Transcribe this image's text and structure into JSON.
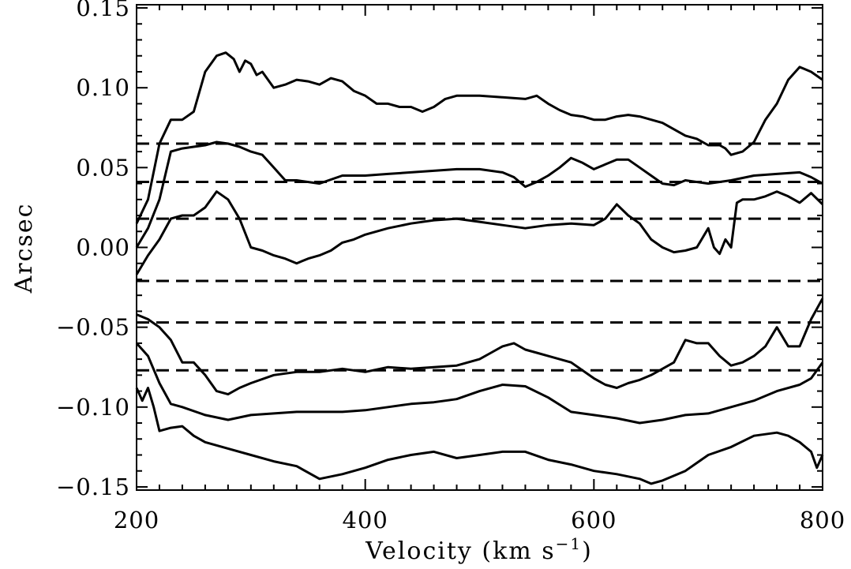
{
  "chart_data": {
    "type": "line",
    "title": "",
    "xlabel": "Velocity (km s",
    "xlabel_exponent": "−1",
    "xlabel_close": ")",
    "ylabel": "Arcsec",
    "xlim": [
      200,
      800
    ],
    "ylim": [
      -0.152,
      0.152
    ],
    "x_ticks": [
      200,
      400,
      600,
      800
    ],
    "x_tick_labels": [
      "200",
      "400",
      "600",
      "800"
    ],
    "y_ticks": [
      -0.15,
      -0.1,
      -0.05,
      0.0,
      0.05,
      0.1,
      0.15
    ],
    "y_tick_labels": [
      "−0.15",
      "−0.10",
      "−0.05",
      "0.00",
      "0.05",
      "0.10",
      "0.15"
    ],
    "grid": false,
    "legend": "none",
    "line_color": "#000000",
    "reference_lines": [
      0.065,
      0.041,
      0.018,
      -0.021,
      -0.047,
      -0.077
    ],
    "series": [
      {
        "points": [
          [
            200,
            0.015
          ],
          [
            210,
            0.03
          ],
          [
            220,
            0.065
          ],
          [
            230,
            0.08
          ],
          [
            240,
            0.08
          ],
          [
            250,
            0.085
          ],
          [
            260,
            0.11
          ],
          [
            270,
            0.12
          ],
          [
            278,
            0.122
          ],
          [
            285,
            0.118
          ],
          [
            290,
            0.11
          ],
          [
            295,
            0.117
          ],
          [
            300,
            0.115
          ],
          [
            305,
            0.108
          ],
          [
            310,
            0.11
          ],
          [
            320,
            0.1
          ],
          [
            330,
            0.102
          ],
          [
            340,
            0.105
          ],
          [
            350,
            0.104
          ],
          [
            360,
            0.102
          ],
          [
            370,
            0.106
          ],
          [
            380,
            0.104
          ],
          [
            390,
            0.098
          ],
          [
            400,
            0.095
          ],
          [
            410,
            0.09
          ],
          [
            420,
            0.09
          ],
          [
            430,
            0.088
          ],
          [
            440,
            0.088
          ],
          [
            450,
            0.085
          ],
          [
            460,
            0.088
          ],
          [
            470,
            0.093
          ],
          [
            480,
            0.095
          ],
          [
            500,
            0.095
          ],
          [
            520,
            0.094
          ],
          [
            540,
            0.093
          ],
          [
            550,
            0.095
          ],
          [
            560,
            0.09
          ],
          [
            570,
            0.086
          ],
          [
            580,
            0.083
          ],
          [
            590,
            0.082
          ],
          [
            600,
            0.08
          ],
          [
            610,
            0.08
          ],
          [
            620,
            0.082
          ],
          [
            630,
            0.083
          ],
          [
            640,
            0.082
          ],
          [
            660,
            0.078
          ],
          [
            670,
            0.074
          ],
          [
            680,
            0.07
          ],
          [
            690,
            0.068
          ],
          [
            700,
            0.064
          ],
          [
            710,
            0.064
          ],
          [
            715,
            0.062
          ],
          [
            720,
            0.058
          ],
          [
            730,
            0.06
          ],
          [
            740,
            0.066
          ],
          [
            750,
            0.08
          ],
          [
            760,
            0.09
          ],
          [
            770,
            0.105
          ],
          [
            780,
            0.113
          ],
          [
            790,
            0.11
          ],
          [
            800,
            0.105
          ]
        ]
      },
      {
        "points": [
          [
            200,
            0.0
          ],
          [
            210,
            0.012
          ],
          [
            220,
            0.03
          ],
          [
            230,
            0.06
          ],
          [
            240,
            0.062
          ],
          [
            250,
            0.063
          ],
          [
            260,
            0.064
          ],
          [
            270,
            0.066
          ],
          [
            280,
            0.065
          ],
          [
            290,
            0.063
          ],
          [
            300,
            0.06
          ],
          [
            310,
            0.058
          ],
          [
            320,
            0.05
          ],
          [
            330,
            0.042
          ],
          [
            340,
            0.042
          ],
          [
            360,
            0.04
          ],
          [
            380,
            0.045
          ],
          [
            400,
            0.045
          ],
          [
            420,
            0.046
          ],
          [
            440,
            0.047
          ],
          [
            460,
            0.048
          ],
          [
            480,
            0.049
          ],
          [
            500,
            0.049
          ],
          [
            520,
            0.047
          ],
          [
            530,
            0.044
          ],
          [
            540,
            0.038
          ],
          [
            550,
            0.041
          ],
          [
            560,
            0.045
          ],
          [
            570,
            0.05
          ],
          [
            580,
            0.056
          ],
          [
            590,
            0.053
          ],
          [
            600,
            0.049
          ],
          [
            610,
            0.052
          ],
          [
            620,
            0.055
          ],
          [
            630,
            0.055
          ],
          [
            640,
            0.05
          ],
          [
            650,
            0.045
          ],
          [
            660,
            0.04
          ],
          [
            670,
            0.039
          ],
          [
            680,
            0.042
          ],
          [
            700,
            0.04
          ],
          [
            720,
            0.042
          ],
          [
            740,
            0.045
          ],
          [
            760,
            0.046
          ],
          [
            780,
            0.047
          ],
          [
            790,
            0.044
          ],
          [
            800,
            0.04
          ]
        ]
      },
      {
        "points": [
          [
            200,
            -0.017
          ],
          [
            210,
            -0.005
          ],
          [
            220,
            0.005
          ],
          [
            230,
            0.018
          ],
          [
            240,
            0.02
          ],
          [
            250,
            0.02
          ],
          [
            260,
            0.025
          ],
          [
            270,
            0.035
          ],
          [
            280,
            0.03
          ],
          [
            290,
            0.018
          ],
          [
            300,
            0.0
          ],
          [
            310,
            -0.002
          ],
          [
            320,
            -0.005
          ],
          [
            330,
            -0.007
          ],
          [
            340,
            -0.01
          ],
          [
            350,
            -0.007
          ],
          [
            360,
            -0.005
          ],
          [
            370,
            -0.002
          ],
          [
            380,
            0.003
          ],
          [
            390,
            0.005
          ],
          [
            400,
            0.008
          ],
          [
            420,
            0.012
          ],
          [
            440,
            0.015
          ],
          [
            460,
            0.017
          ],
          [
            480,
            0.018
          ],
          [
            500,
            0.016
          ],
          [
            520,
            0.014
          ],
          [
            540,
            0.012
          ],
          [
            560,
            0.014
          ],
          [
            580,
            0.015
          ],
          [
            600,
            0.014
          ],
          [
            610,
            0.018
          ],
          [
            620,
            0.027
          ],
          [
            630,
            0.02
          ],
          [
            640,
            0.015
          ],
          [
            650,
            0.005
          ],
          [
            660,
            0.0
          ],
          [
            670,
            -0.003
          ],
          [
            680,
            -0.002
          ],
          [
            690,
            0.0
          ],
          [
            700,
            0.012
          ],
          [
            705,
            0.0
          ],
          [
            710,
            -0.004
          ],
          [
            715,
            0.005
          ],
          [
            720,
            0.0
          ],
          [
            725,
            0.028
          ],
          [
            730,
            0.03
          ],
          [
            740,
            0.03
          ],
          [
            750,
            0.032
          ],
          [
            760,
            0.035
          ],
          [
            770,
            0.032
          ],
          [
            780,
            0.028
          ],
          [
            790,
            0.034
          ],
          [
            800,
            0.027
          ]
        ]
      },
      {
        "points": [
          [
            200,
            -0.042
          ],
          [
            210,
            -0.045
          ],
          [
            220,
            -0.05
          ],
          [
            230,
            -0.058
          ],
          [
            240,
            -0.072
          ],
          [
            250,
            -0.072
          ],
          [
            260,
            -0.08
          ],
          [
            270,
            -0.09
          ],
          [
            280,
            -0.092
          ],
          [
            290,
            -0.088
          ],
          [
            300,
            -0.085
          ],
          [
            320,
            -0.08
          ],
          [
            340,
            -0.078
          ],
          [
            360,
            -0.078
          ],
          [
            380,
            -0.076
          ],
          [
            400,
            -0.078
          ],
          [
            420,
            -0.075
          ],
          [
            440,
            -0.076
          ],
          [
            460,
            -0.075
          ],
          [
            480,
            -0.074
          ],
          [
            500,
            -0.07
          ],
          [
            510,
            -0.066
          ],
          [
            520,
            -0.062
          ],
          [
            530,
            -0.06
          ],
          [
            540,
            -0.064
          ],
          [
            550,
            -0.066
          ],
          [
            560,
            -0.068
          ],
          [
            580,
            -0.072
          ],
          [
            600,
            -0.082
          ],
          [
            610,
            -0.086
          ],
          [
            620,
            -0.088
          ],
          [
            630,
            -0.085
          ],
          [
            640,
            -0.083
          ],
          [
            650,
            -0.08
          ],
          [
            660,
            -0.076
          ],
          [
            670,
            -0.072
          ],
          [
            680,
            -0.058
          ],
          [
            690,
            -0.06
          ],
          [
            700,
            -0.06
          ],
          [
            710,
            -0.068
          ],
          [
            720,
            -0.074
          ],
          [
            730,
            -0.072
          ],
          [
            740,
            -0.068
          ],
          [
            750,
            -0.062
          ],
          [
            760,
            -0.05
          ],
          [
            770,
            -0.062
          ],
          [
            780,
            -0.062
          ],
          [
            790,
            -0.045
          ],
          [
            800,
            -0.032
          ]
        ]
      },
      {
        "points": [
          [
            200,
            -0.06
          ],
          [
            210,
            -0.068
          ],
          [
            220,
            -0.085
          ],
          [
            230,
            -0.098
          ],
          [
            240,
            -0.1
          ],
          [
            260,
            -0.105
          ],
          [
            280,
            -0.108
          ],
          [
            300,
            -0.105
          ],
          [
            320,
            -0.104
          ],
          [
            340,
            -0.103
          ],
          [
            360,
            -0.103
          ],
          [
            380,
            -0.103
          ],
          [
            400,
            -0.102
          ],
          [
            420,
            -0.1
          ],
          [
            440,
            -0.098
          ],
          [
            460,
            -0.097
          ],
          [
            480,
            -0.095
          ],
          [
            500,
            -0.09
          ],
          [
            520,
            -0.086
          ],
          [
            540,
            -0.087
          ],
          [
            560,
            -0.094
          ],
          [
            580,
            -0.103
          ],
          [
            600,
            -0.105
          ],
          [
            620,
            -0.107
          ],
          [
            640,
            -0.11
          ],
          [
            660,
            -0.108
          ],
          [
            680,
            -0.105
          ],
          [
            700,
            -0.104
          ],
          [
            720,
            -0.1
          ],
          [
            740,
            -0.096
          ],
          [
            760,
            -0.09
          ],
          [
            780,
            -0.086
          ],
          [
            790,
            -0.082
          ],
          [
            800,
            -0.072
          ]
        ]
      },
      {
        "points": [
          [
            200,
            -0.088
          ],
          [
            205,
            -0.096
          ],
          [
            210,
            -0.088
          ],
          [
            215,
            -0.1
          ],
          [
            220,
            -0.115
          ],
          [
            230,
            -0.113
          ],
          [
            240,
            -0.112
          ],
          [
            250,
            -0.118
          ],
          [
            260,
            -0.122
          ],
          [
            280,
            -0.126
          ],
          [
            300,
            -0.13
          ],
          [
            320,
            -0.134
          ],
          [
            340,
            -0.137
          ],
          [
            360,
            -0.145
          ],
          [
            380,
            -0.142
          ],
          [
            400,
            -0.138
          ],
          [
            420,
            -0.133
          ],
          [
            440,
            -0.13
          ],
          [
            460,
            -0.128
          ],
          [
            480,
            -0.132
          ],
          [
            500,
            -0.13
          ],
          [
            520,
            -0.128
          ],
          [
            540,
            -0.128
          ],
          [
            560,
            -0.133
          ],
          [
            580,
            -0.136
          ],
          [
            600,
            -0.14
          ],
          [
            620,
            -0.142
          ],
          [
            640,
            -0.145
          ],
          [
            650,
            -0.148
          ],
          [
            660,
            -0.146
          ],
          [
            680,
            -0.14
          ],
          [
            700,
            -0.13
          ],
          [
            720,
            -0.125
          ],
          [
            740,
            -0.118
          ],
          [
            760,
            -0.116
          ],
          [
            770,
            -0.118
          ],
          [
            780,
            -0.122
          ],
          [
            790,
            -0.128
          ],
          [
            795,
            -0.138
          ],
          [
            800,
            -0.13
          ]
        ]
      }
    ]
  }
}
